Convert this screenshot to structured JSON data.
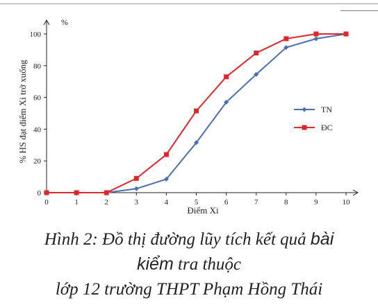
{
  "chart_data": {
    "type": "line",
    "x": [
      0,
      1,
      2,
      3,
      4,
      5,
      6,
      7,
      8,
      9,
      10
    ],
    "xlabel": "Điểm Xi",
    "ylabel": "% HS đạt điểm Xi trở xuống",
    "y_unit": "%",
    "xlim": [
      0,
      10
    ],
    "ylim": [
      0,
      100
    ],
    "yticks": [
      0,
      20,
      40,
      60,
      80,
      100
    ],
    "grid": false,
    "legend": "right",
    "series": [
      {
        "name": "TN",
        "color": "#4a6fb0",
        "marker": "diamond",
        "values": [
          0,
          0,
          0,
          2.5,
          8.5,
          31.5,
          57,
          74.5,
          91.5,
          97,
          100
        ]
      },
      {
        "name": "ĐC",
        "color": "#e0262b",
        "marker": "square",
        "values": [
          0,
          0,
          0,
          9,
          24,
          51.5,
          73,
          88,
          97,
          100,
          100
        ]
      }
    ]
  },
  "caption": {
    "line1_part1": "Hình 2: Đồ thị đường lũy tích kết quả ",
    "line1_part2": "bài",
    "line2_part1": "kiểm",
    "line2_part2": " tra thuộc",
    "line3": "lớp 12 trường THPT Phạm Hồng Thái"
  }
}
